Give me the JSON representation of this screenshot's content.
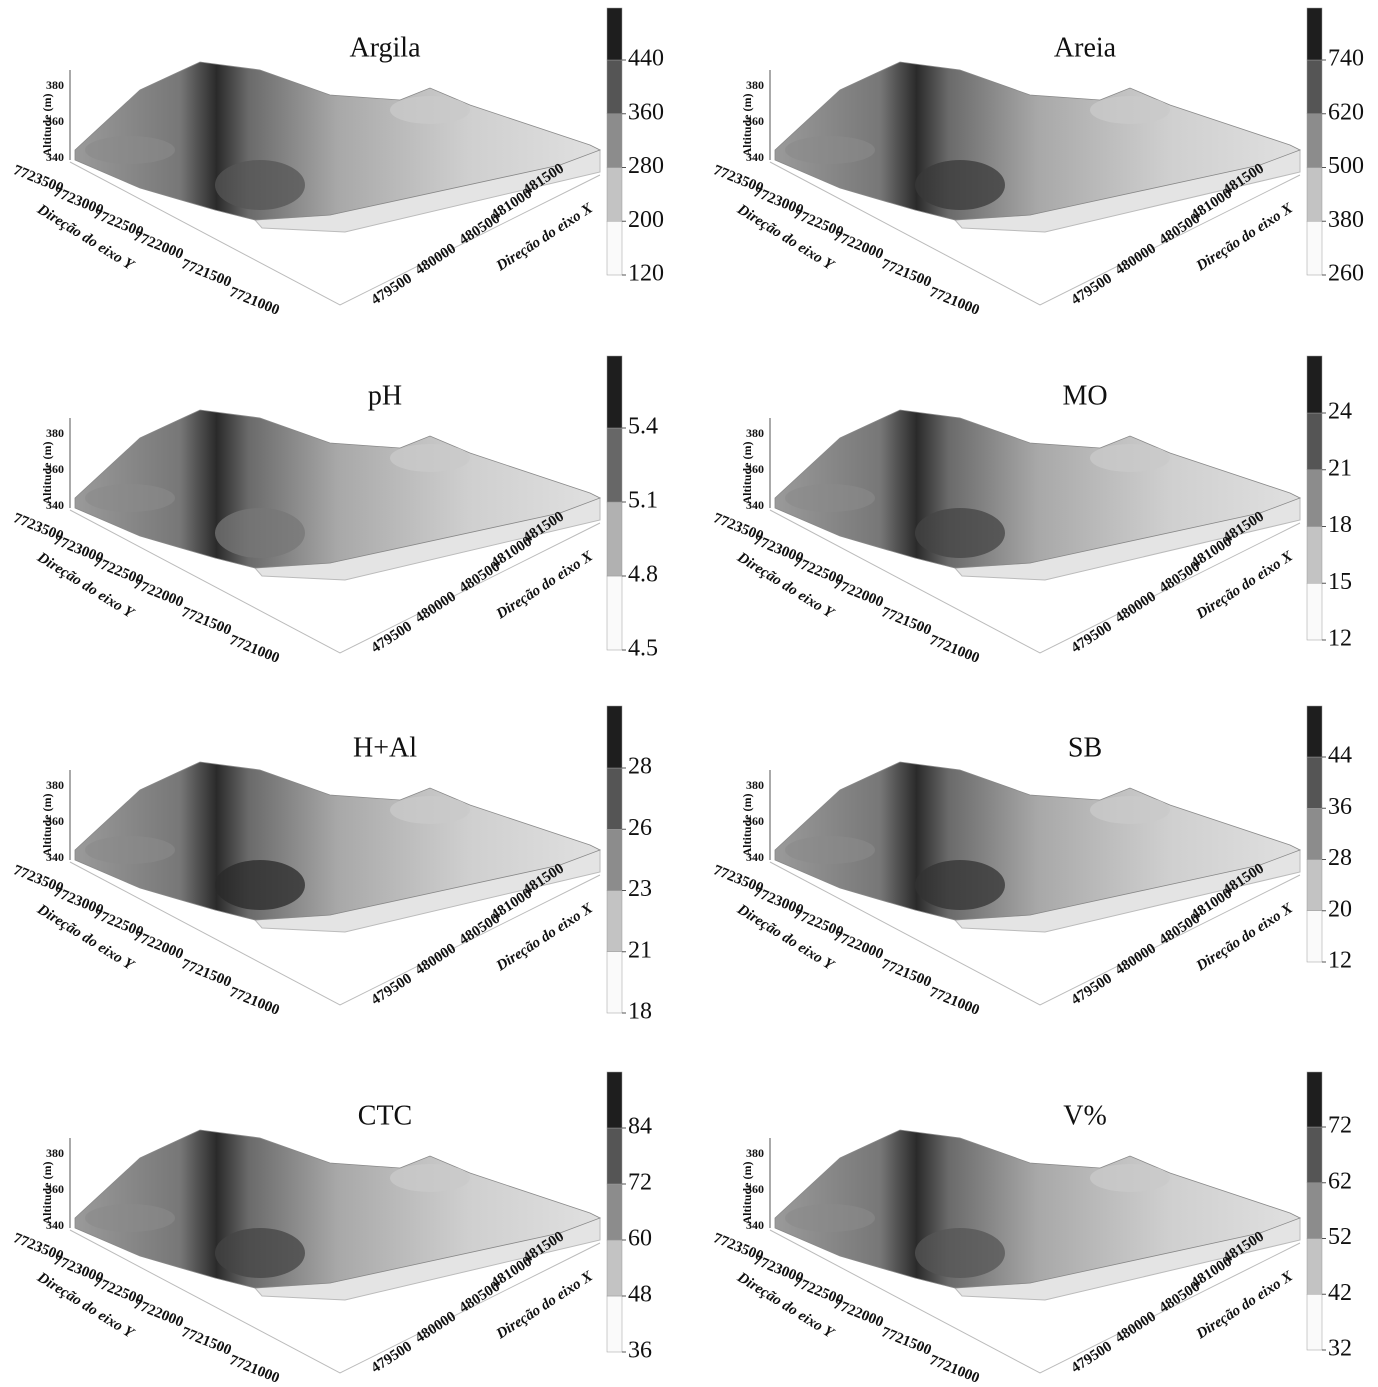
{
  "axes": {
    "z_label": "Altitude (m)",
    "zticks": [
      340,
      360,
      380
    ],
    "y_label": "Direção do eixo Y",
    "yticks": [
      7723500,
      7723000,
      7722500,
      7722000,
      7721500,
      7721000
    ],
    "x_label": "Direção do eixo X",
    "xticks": [
      479500,
      480000,
      480500,
      481000,
      481500
    ]
  },
  "chart_data": [
    {
      "type": "surface3d",
      "title": "Argila",
      "colorbar_ticks": [
        120,
        200,
        280,
        360,
        440
      ]
    },
    {
      "type": "surface3d",
      "title": "Areia",
      "colorbar_ticks": [
        260,
        380,
        500,
        620,
        740
      ]
    },
    {
      "type": "surface3d",
      "title": "pH",
      "colorbar_ticks": [
        4.5,
        4.8,
        5.1,
        5.4
      ]
    },
    {
      "type": "surface3d",
      "title": "MO",
      "colorbar_ticks": [
        12,
        15,
        18,
        21,
        24
      ]
    },
    {
      "type": "surface3d",
      "title": "H+Al",
      "colorbar_ticks": [
        18,
        21,
        23,
        26,
        28
      ]
    },
    {
      "type": "surface3d",
      "title": "SB",
      "colorbar_ticks": [
        12,
        20,
        28,
        36,
        44
      ]
    },
    {
      "type": "surface3d",
      "title": "CTC",
      "colorbar_ticks": [
        36,
        48,
        60,
        72,
        84
      ]
    },
    {
      "type": "surface3d",
      "title": "V%",
      "colorbar_ticks": [
        32,
        42,
        52,
        62,
        72
      ]
    }
  ]
}
